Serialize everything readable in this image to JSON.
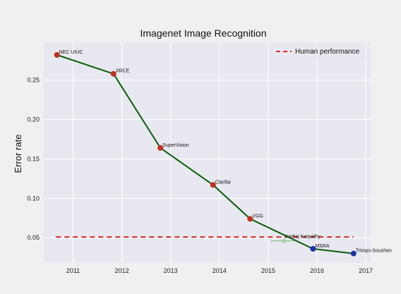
{
  "chart_data": {
    "type": "line",
    "title": "Imagenet Image Recognition",
    "xlabel": "",
    "ylabel": "Error rate",
    "xlim": [
      2010.4,
      2017.1
    ],
    "ylim": [
      0.018,
      0.298
    ],
    "x_ticks": [
      2011,
      2012,
      2013,
      2014,
      2015,
      2016,
      2017
    ],
    "y_ticks": [
      0.05,
      0.1,
      0.15,
      0.2,
      0.25
    ],
    "y_tick_labels": [
      "0.05",
      "0.10",
      "0.15",
      "0.20",
      "0.25"
    ],
    "grid": true,
    "legend_position": "top-right",
    "line_color": "#0b5e0b",
    "series": [
      {
        "points": [
          {
            "x": 2010.67,
            "y": 0.282,
            "label": "NEC UIUC",
            "color": "#c0301e"
          },
          {
            "x": 2011.83,
            "y": 0.258,
            "label": "XRCE",
            "color": "#c0301e"
          },
          {
            "x": 2012.79,
            "y": 0.164,
            "label": "SuperVision",
            "color": "#c0301e"
          },
          {
            "x": 2013.87,
            "y": 0.117,
            "label": "Clarifai",
            "color": "#c0301e"
          },
          {
            "x": 2014.63,
            "y": 0.074,
            "label": "VGG",
            "color": "#c0301e"
          },
          {
            "x": 2015.92,
            "y": 0.036,
            "label": "MSRA",
            "color": "#1f2fa8"
          },
          {
            "x": 2016.75,
            "y": 0.03,
            "label": "Trimps-Soushen",
            "color": "#1f2fa8"
          }
        ]
      }
    ],
    "reference_lines": [
      {
        "name": "Human performance",
        "y": 0.051,
        "x_from": 2010.65,
        "x_to": 2016.75,
        "color": "#d62728",
        "style": "dashed"
      }
    ],
    "annotations": [
      {
        "text": "Andrej Karpathy",
        "x": 2015.3,
        "y": 0.046,
        "color": "#7fbf7f"
      }
    ]
  }
}
